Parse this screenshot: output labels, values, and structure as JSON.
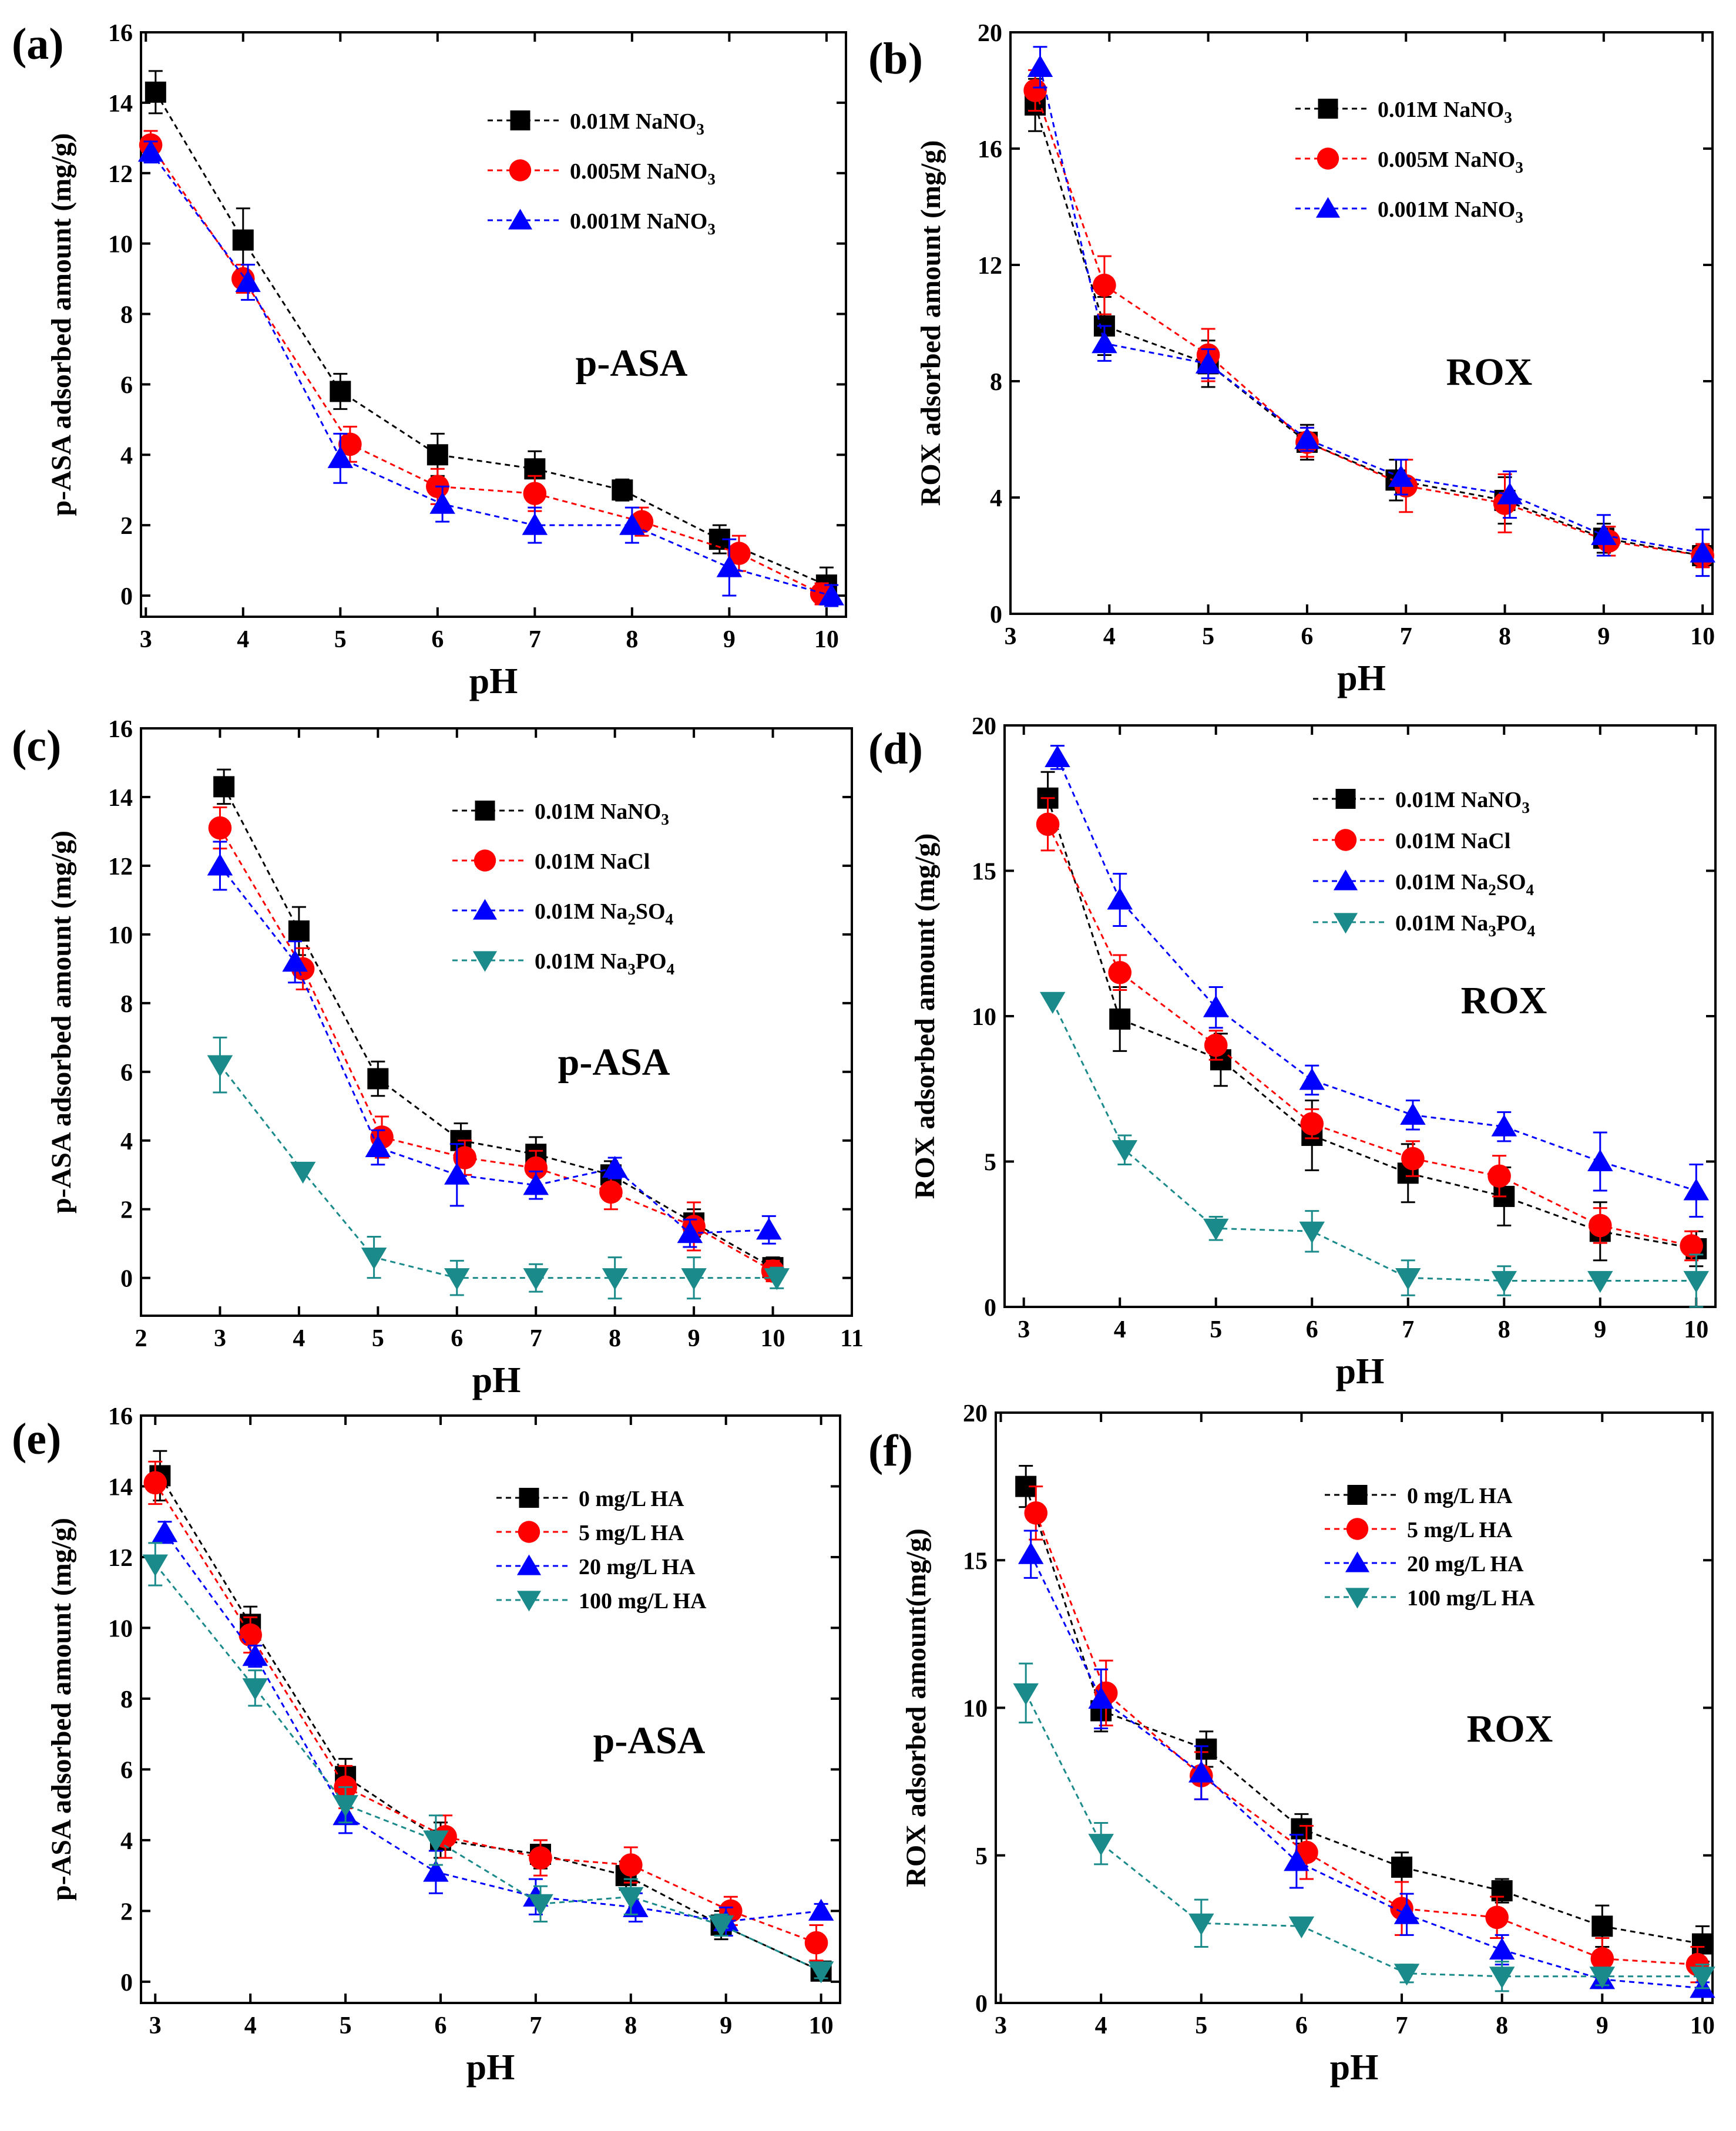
{
  "chart_data": [
    {
      "type": "line",
      "panel_label": "(a)",
      "annotation": "p-ASA",
      "xlabel": "pH",
      "ylabel": "p-ASA adsorbed amount (mg/g)",
      "xlim": [
        2.95,
        10.2
      ],
      "ylim": [
        -0.6,
        16
      ],
      "xticks": [
        "3",
        "4",
        "5",
        "6",
        "7",
        "8",
        "9",
        "10"
      ],
      "yticks": [
        "0",
        "2",
        "4",
        "6",
        "8",
        "10",
        "12",
        "14",
        "16"
      ],
      "series": [
        {
          "name": "0.01M NaNO",
          "sub": "3",
          "color": "#000000",
          "marker": "square",
          "x": [
            3.1,
            4.0,
            5.0,
            6.0,
            7.0,
            7.9,
            8.9,
            10.0
          ],
          "y": [
            14.3,
            10.1,
            5.8,
            4.0,
            3.6,
            3.0,
            1.6,
            0.3
          ],
          "err": [
            0.6,
            0.9,
            0.5,
            0.6,
            0.5,
            0.3,
            0.4,
            0.5
          ]
        },
        {
          "name": "0.005M NaNO",
          "sub": "3",
          "color": "#ff0000",
          "marker": "circle",
          "x": [
            3.05,
            4.0,
            5.1,
            6.0,
            7.0,
            8.1,
            9.1,
            9.95
          ],
          "y": [
            12.8,
            9.0,
            4.3,
            3.1,
            2.9,
            2.1,
            1.2,
            0.05
          ],
          "err": [
            0.4,
            0.4,
            0.5,
            0.5,
            0.5,
            0.4,
            0.5,
            0.3
          ]
        },
        {
          "name": "0.001M NaNO",
          "sub": "3",
          "color": "#0000ff",
          "marker": "triangle-up",
          "x": [
            3.05,
            4.05,
            5.0,
            6.05,
            7.0,
            8.0,
            9.0,
            10.05
          ],
          "y": [
            12.6,
            8.9,
            3.9,
            2.6,
            2.0,
            2.0,
            0.8,
            0.0
          ],
          "err": [
            0.3,
            0.5,
            0.7,
            0.5,
            0.5,
            0.5,
            0.8,
            0.3
          ]
        }
      ]
    },
    {
      "type": "line",
      "panel_label": "(b)",
      "annotation": "ROX",
      "xlabel": "pH",
      "ylabel": "ROX adsorbed amount (mg/g)",
      "xlim": [
        3.0,
        10.1
      ],
      "ylim": [
        0,
        20
      ],
      "xticks": [
        "3",
        "4",
        "5",
        "6",
        "7",
        "8",
        "9",
        "10"
      ],
      "yticks": [
        "0",
        "4",
        "8",
        "12",
        "16",
        "20"
      ],
      "series": [
        {
          "name": "0.01M NaNO",
          "sub": "3",
          "color": "#000000",
          "marker": "square",
          "x": [
            3.25,
            3.95,
            5.0,
            6.0,
            6.9,
            8.0,
            9.0,
            10.0
          ],
          "y": [
            17.5,
            9.9,
            8.6,
            5.9,
            4.6,
            3.9,
            2.6,
            2.0
          ],
          "err": [
            0.9,
            1.0,
            0.8,
            0.6,
            0.7,
            0.8,
            0.5,
            0.4
          ]
        },
        {
          "name": "0.005M NaNO",
          "sub": "3",
          "color": "#ff0000",
          "marker": "circle",
          "x": [
            3.25,
            3.95,
            5.0,
            6.0,
            7.0,
            8.0,
            9.05,
            10.0
          ],
          "y": [
            18.0,
            11.3,
            8.9,
            5.9,
            4.4,
            3.8,
            2.5,
            2.0
          ],
          "err": [
            0.7,
            1.0,
            0.9,
            0.5,
            0.9,
            1.0,
            0.5,
            0.4
          ]
        },
        {
          "name": "0.001M NaNO",
          "sub": "3",
          "color": "#0000ff",
          "marker": "triangle-up",
          "x": [
            3.3,
            3.95,
            5.0,
            6.0,
            6.95,
            8.05,
            9.0,
            10.0
          ],
          "y": [
            18.8,
            9.3,
            8.6,
            6.0,
            4.7,
            4.1,
            2.7,
            2.1
          ],
          "err": [
            0.7,
            0.6,
            0.5,
            0.4,
            0.6,
            0.8,
            0.7,
            0.8
          ]
        }
      ]
    },
    {
      "type": "line",
      "panel_label": "(c)",
      "annotation": "p-ASA",
      "xlabel": "pH",
      "ylabel": "p-ASA adsorbed amount (mg/g)",
      "xlim": [
        2.0,
        11.0
      ],
      "ylim": [
        -1.1,
        16
      ],
      "xticks": [
        "2",
        "3",
        "4",
        "5",
        "6",
        "7",
        "8",
        "9",
        "10",
        "11"
      ],
      "yticks": [
        "0",
        "2",
        "4",
        "6",
        "8",
        "10",
        "12",
        "14",
        "16"
      ],
      "series": [
        {
          "name": "0.01M NaNO",
          "sub": "3",
          "color": "#000000",
          "marker": "square",
          "x": [
            3.05,
            4.0,
            5.0,
            6.05,
            7.0,
            7.95,
            9.0,
            10.0
          ],
          "y": [
            14.3,
            10.1,
            5.8,
            4.0,
            3.6,
            3.0,
            1.6,
            0.3
          ],
          "err": [
            0.5,
            0.7,
            0.5,
            0.5,
            0.5,
            0.4,
            0.4,
            0.3
          ]
        },
        {
          "name": "0.01M NaCl",
          "sub": "",
          "color": "#ff0000",
          "marker": "circle",
          "x": [
            3.0,
            4.05,
            5.05,
            6.1,
            7.0,
            7.95,
            9.0,
            10.0
          ],
          "y": [
            13.1,
            9.0,
            4.1,
            3.5,
            3.2,
            2.5,
            1.5,
            0.2
          ],
          "err": [
            0.6,
            0.6,
            0.6,
            0.5,
            0.5,
            0.5,
            0.7,
            0.3
          ]
        },
        {
          "name": "0.01M Na",
          "sub": "2",
          "suffix": "SO",
          "sub2": "4",
          "color": "#0000ff",
          "marker": "triangle-up",
          "x": [
            3.0,
            3.95,
            5.0,
            6.0,
            7.0,
            8.0,
            8.95,
            9.95
          ],
          "y": [
            12.0,
            9.2,
            3.8,
            3.0,
            2.7,
            3.2,
            1.3,
            1.4
          ],
          "err": [
            0.7,
            0.6,
            0.5,
            0.9,
            0.4,
            0.3,
            0.4,
            0.4
          ]
        },
        {
          "name": "0.01M Na",
          "sub": "3",
          "suffix": "PO",
          "sub2": "4",
          "color": "#1a8a8a",
          "marker": "triangle-down",
          "x": [
            3.0,
            4.05,
            4.95,
            6.0,
            7.0,
            8.0,
            9.0,
            10.05
          ],
          "y": [
            6.2,
            3.1,
            0.6,
            0.0,
            0.0,
            0.0,
            0.0,
            0.0
          ],
          "err": [
            0.8,
            0.0,
            0.6,
            0.5,
            0.4,
            0.6,
            0.6,
            0.3
          ]
        }
      ]
    },
    {
      "type": "line",
      "panel_label": "(d)",
      "annotation": "ROX",
      "xlabel": "pH",
      "ylabel": "ROX adsorbed amount (mg/g)",
      "xlim": [
        2.8,
        10.2
      ],
      "ylim": [
        0,
        20
      ],
      "xticks": [
        "3",
        "4",
        "5",
        "6",
        "7",
        "8",
        "9",
        "10"
      ],
      "yticks": [
        "0",
        "5",
        "10",
        "15",
        "20"
      ],
      "series": [
        {
          "name": "0.01M NaNO",
          "sub": "3",
          "color": "#000000",
          "marker": "square",
          "x": [
            3.25,
            4.0,
            5.05,
            6.0,
            7.0,
            8.0,
            9.0,
            10.0
          ],
          "y": [
            17.5,
            9.9,
            8.5,
            5.9,
            4.6,
            3.8,
            2.6,
            2.0
          ],
          "err": [
            0.9,
            1.1,
            0.9,
            1.2,
            1.0,
            1.0,
            1.0,
            0.6
          ]
        },
        {
          "name": "0.01M NaCl",
          "sub": "",
          "color": "#ff0000",
          "marker": "circle",
          "x": [
            3.25,
            4.0,
            5.0,
            6.0,
            7.05,
            7.95,
            9.0,
            9.95
          ],
          "y": [
            16.6,
            11.5,
            9.0,
            6.3,
            5.1,
            4.5,
            2.8,
            2.1
          ],
          "err": [
            0.9,
            0.6,
            0.5,
            0.5,
            0.6,
            0.7,
            0.6,
            0.5
          ]
        },
        {
          "name": "0.01M Na",
          "sub": "2",
          "suffix": "SO",
          "sub2": "4",
          "color": "#0000ff",
          "marker": "triangle-up",
          "x": [
            3.35,
            4.0,
            5.0,
            6.0,
            7.05,
            8.0,
            9.0,
            10.0
          ],
          "y": [
            18.9,
            14.0,
            10.3,
            7.8,
            6.6,
            6.2,
            5.0,
            4.0
          ],
          "err": [
            0.4,
            0.9,
            0.7,
            0.5,
            0.5,
            0.5,
            1.0,
            0.9
          ]
        },
        {
          "name": "0.01M Na",
          "sub": "3",
          "suffix": "PO",
          "sub2": "4",
          "color": "#1a8a8a",
          "marker": "triangle-down",
          "x": [
            3.3,
            4.05,
            5.0,
            6.0,
            7.0,
            8.0,
            9.0,
            10.0
          ],
          "y": [
            10.5,
            5.4,
            2.7,
            2.6,
            1.0,
            0.9,
            0.9,
            0.9
          ],
          "err": [
            0.0,
            0.5,
            0.4,
            0.7,
            0.6,
            0.5,
            0.0,
            0.9
          ]
        }
      ]
    },
    {
      "type": "line",
      "panel_label": "(e)",
      "annotation": "p-ASA",
      "xlabel": "pH",
      "ylabel": "p-ASA adsorbed amount (mg/g)",
      "xlim": [
        2.85,
        10.2
      ],
      "ylim": [
        -0.6,
        16
      ],
      "xticks": [
        "3",
        "4",
        "5",
        "6",
        "7",
        "8",
        "9",
        "10"
      ],
      "yticks": [
        "0",
        "2",
        "4",
        "6",
        "8",
        "10",
        "12",
        "14",
        "16"
      ],
      "series": [
        {
          "name": "0 mg/L HA",
          "sub": "",
          "color": "#000000",
          "marker": "square",
          "x": [
            3.05,
            4.0,
            5.0,
            6.0,
            7.05,
            7.95,
            8.95,
            10.0
          ],
          "y": [
            14.3,
            10.1,
            5.8,
            4.0,
            3.6,
            3.0,
            1.6,
            0.3
          ],
          "err": [
            0.7,
            0.5,
            0.5,
            0.5,
            0.4,
            0.4,
            0.4,
            0.2
          ]
        },
        {
          "name": "5 mg/L HA",
          "sub": "",
          "color": "#ff0000",
          "marker": "circle",
          "x": [
            3.0,
            4.0,
            5.0,
            6.05,
            7.05,
            8.0,
            9.05,
            9.95
          ],
          "y": [
            14.1,
            9.8,
            5.5,
            4.1,
            3.5,
            3.3,
            2.0,
            1.1
          ],
          "err": [
            0.6,
            0.5,
            0.6,
            0.6,
            0.5,
            0.5,
            0.4,
            0.5
          ]
        },
        {
          "name": "20 mg/L HA",
          "sub": "",
          "color": "#0000ff",
          "marker": "triangle-up",
          "x": [
            3.1,
            4.05,
            5.0,
            5.95,
            7.0,
            8.05,
            9.0,
            10.0
          ],
          "y": [
            12.7,
            9.2,
            4.7,
            3.1,
            2.4,
            2.1,
            1.7,
            2.0
          ],
          "err": [
            0.3,
            0.3,
            0.5,
            0.6,
            0.5,
            0.4,
            0.4,
            0.2
          ]
        },
        {
          "name": "100 mg/L HA",
          "sub": "",
          "color": "#1a8a8a",
          "marker": "triangle-down",
          "x": [
            3.0,
            4.05,
            5.0,
            5.95,
            7.05,
            8.0,
            8.95,
            10.0
          ],
          "y": [
            11.8,
            8.3,
            5.0,
            4.0,
            2.2,
            2.4,
            1.6,
            0.3
          ],
          "err": [
            0.6,
            0.5,
            0.5,
            0.7,
            0.5,
            0.5,
            0.3,
            0.2
          ]
        }
      ]
    },
    {
      "type": "line",
      "panel_label": "(f)",
      "annotation": "ROX",
      "xlabel": "pH",
      "ylabel": "ROX adsorbed amount(mg/g)",
      "xlim": [
        2.95,
        10.1
      ],
      "ylim": [
        0,
        20
      ],
      "xticks": [
        "3",
        "4",
        "5",
        "6",
        "7",
        "8",
        "9",
        "10"
      ],
      "yticks": [
        "0",
        "5",
        "10",
        "15",
        "20"
      ],
      "series": [
        {
          "name": "0 mg/L HA",
          "sub": "",
          "color": "#000000",
          "marker": "square",
          "x": [
            3.25,
            4.0,
            5.05,
            6.0,
            7.0,
            8.0,
            9.0,
            10.0
          ],
          "y": [
            17.5,
            9.9,
            8.6,
            5.9,
            4.6,
            3.8,
            2.6,
            2.0
          ],
          "err": [
            0.7,
            0.7,
            0.6,
            0.5,
            0.5,
            0.4,
            0.7,
            0.6
          ]
        },
        {
          "name": "5 mg/L HA",
          "sub": "",
          "color": "#ff0000",
          "marker": "circle",
          "x": [
            3.35,
            4.05,
            5.0,
            6.05,
            7.0,
            7.95,
            9.0,
            9.95
          ],
          "y": [
            16.6,
            10.5,
            7.7,
            5.1,
            3.2,
            2.9,
            1.5,
            1.3
          ],
          "err": [
            0.9,
            1.1,
            0.8,
            0.9,
            0.9,
            0.7,
            0.7,
            0.6
          ]
        },
        {
          "name": "20 mg/L HA",
          "sub": "",
          "color": "#0000ff",
          "marker": "triangle-up",
          "x": [
            3.3,
            4.0,
            5.0,
            5.95,
            7.05,
            8.0,
            9.0,
            10.0
          ],
          "y": [
            15.2,
            10.3,
            7.8,
            4.8,
            3.0,
            1.8,
            0.8,
            0.5
          ],
          "err": [
            0.8,
            1.0,
            0.9,
            0.9,
            0.7,
            0.5,
            0.3,
            0.2
          ]
        },
        {
          "name": "100 mg/L HA",
          "sub": "",
          "color": "#1a8a8a",
          "marker": "triangle-down",
          "x": [
            3.25,
            4.0,
            5.0,
            6.0,
            7.05,
            8.0,
            9.0,
            10.0
          ],
          "y": [
            10.5,
            5.4,
            2.7,
            2.6,
            1.0,
            0.9,
            0.9,
            0.9
          ],
          "err": [
            1.0,
            0.7,
            0.8,
            0.0,
            0.3,
            0.5,
            0.3,
            0.4
          ]
        }
      ]
    }
  ]
}
